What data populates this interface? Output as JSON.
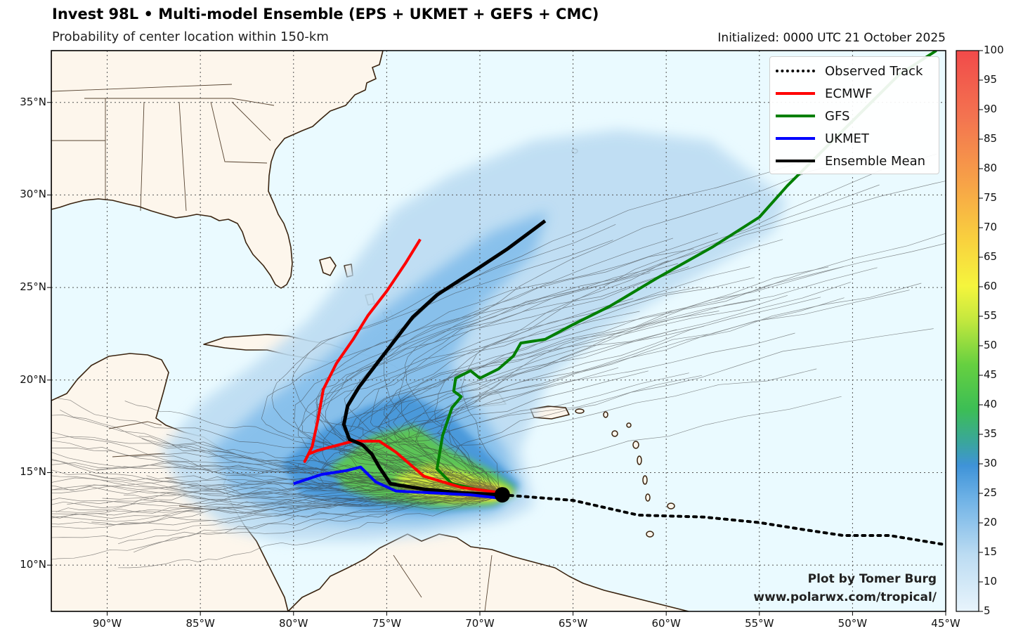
{
  "header": {
    "title": "Invest 98L • Multi-model Ensemble (EPS + UKMET + GEFS + CMC)",
    "subtitle": "Probability of center location within 150-km",
    "initialized": "Initialized: 0000 UTC 21 October 2025"
  },
  "map": {
    "extent": {
      "lon_min": -93.0,
      "lon_max": -45.0,
      "lat_min": 7.5,
      "lat_max": 37.8
    },
    "colors": {
      "ocean": "#eafaff",
      "land": "#fdf6ec",
      "coast": "#3a2410",
      "grid": "#555555"
    },
    "lon_ticks": [
      {
        "lon": -90,
        "label": "90°W"
      },
      {
        "lon": -85,
        "label": "85°W"
      },
      {
        "lon": -80,
        "label": "80°W"
      },
      {
        "lon": -75,
        "label": "75°W"
      },
      {
        "lon": -70,
        "label": "70°W"
      },
      {
        "lon": -65,
        "label": "65°W"
      },
      {
        "lon": -60,
        "label": "60°W"
      },
      {
        "lon": -55,
        "label": "55°W"
      },
      {
        "lon": -50,
        "label": "50°W"
      },
      {
        "lon": -45,
        "label": "45°W"
      }
    ],
    "lat_ticks": [
      {
        "lat": 10,
        "label": "10°N"
      },
      {
        "lat": 15,
        "label": "15°N"
      },
      {
        "lat": 20,
        "label": "20°N"
      },
      {
        "lat": 25,
        "label": "25°N"
      },
      {
        "lat": 30,
        "label": "30°N"
      },
      {
        "lat": 35,
        "label": "35°N"
      }
    ]
  },
  "legend": [
    {
      "key": "observed",
      "label": "Observed Track",
      "color": "#000000",
      "style": "dotted"
    },
    {
      "key": "ecmwf",
      "label": "ECMWF",
      "color": "#ff0000",
      "style": "solid"
    },
    {
      "key": "gfs",
      "label": "GFS",
      "color": "#007f00",
      "style": "solid"
    },
    {
      "key": "ukmet",
      "label": "UKMET",
      "color": "#0000ff",
      "style": "solid"
    },
    {
      "key": "mean",
      "label": "Ensemble Mean",
      "color": "#000000",
      "style": "solid"
    }
  ],
  "tracks": {
    "observed": [
      [
        -68.8,
        13.8
      ],
      [
        -65,
        13.5
      ],
      [
        -61.5,
        12.7
      ],
      [
        -58,
        12.6
      ],
      [
        -55,
        12.3
      ],
      [
        -52.5,
        11.9
      ],
      [
        -50.5,
        11.6
      ],
      [
        -48,
        11.6
      ],
      [
        -45,
        11.1
      ]
    ],
    "ecmwf": [
      [
        -68.8,
        13.9
      ],
      [
        -71,
        14.2
      ],
      [
        -73,
        14.8
      ],
      [
        -74.5,
        16.1
      ],
      [
        -75.4,
        16.7
      ],
      [
        -76.8,
        16.7
      ],
      [
        -78.7,
        16.2
      ],
      [
        -79.2,
        16.0
      ],
      [
        -79.4,
        15.6
      ],
      [
        -79.0,
        16.4
      ],
      [
        -78.7,
        17.8
      ],
      [
        -78.4,
        19.5
      ],
      [
        -77.7,
        20.9
      ],
      [
        -76.8,
        22.2
      ],
      [
        -76.0,
        23.5
      ],
      [
        -75.0,
        24.8
      ],
      [
        -74.0,
        26.3
      ],
      [
        -73.2,
        27.6
      ]
    ],
    "gfs": [
      [
        -68.8,
        13.9
      ],
      [
        -70.2,
        14.1
      ],
      [
        -71.5,
        14.4
      ],
      [
        -72.3,
        15.2
      ],
      [
        -72.0,
        17.0
      ],
      [
        -71.5,
        18.5
      ],
      [
        -71.0,
        19.1
      ],
      [
        -71.4,
        19.4
      ],
      [
        -71.3,
        20.1
      ],
      [
        -70.5,
        20.5
      ],
      [
        -70.0,
        20.1
      ],
      [
        -69.0,
        20.6
      ],
      [
        -68.2,
        21.3
      ],
      [
        -67.8,
        22.0
      ],
      [
        -66.5,
        22.2
      ],
      [
        -65.0,
        23.0
      ],
      [
        -63.0,
        24.0
      ],
      [
        -60.5,
        25.5
      ],
      [
        -57.5,
        27.2
      ],
      [
        -55.0,
        28.8
      ],
      [
        -53.5,
        30.5
      ],
      [
        -51.5,
        32.5
      ],
      [
        -49.5,
        34.5
      ],
      [
        -47.5,
        36.5
      ],
      [
        -45.5,
        37.8
      ]
    ],
    "ukmet": [
      [
        -68.8,
        13.6
      ],
      [
        -70.5,
        13.8
      ],
      [
        -72.5,
        13.9
      ],
      [
        -74.5,
        14.0
      ],
      [
        -75.6,
        14.5
      ],
      [
        -76.4,
        15.3
      ],
      [
        -77.2,
        15.1
      ],
      [
        -78.5,
        14.9
      ],
      [
        -80.0,
        14.4
      ]
    ],
    "mean": [
      [
        -68.8,
        13.8
      ],
      [
        -71,
        13.9
      ],
      [
        -73,
        14.1
      ],
      [
        -74.8,
        14.4
      ],
      [
        -75.4,
        15.3
      ],
      [
        -75.8,
        16.0
      ],
      [
        -76.3,
        16.5
      ],
      [
        -77.0,
        16.8
      ],
      [
        -77.3,
        17.6
      ],
      [
        -77.1,
        18.6
      ],
      [
        -76.5,
        19.6
      ],
      [
        -75.6,
        20.8
      ],
      [
        -74.6,
        22.1
      ],
      [
        -73.6,
        23.4
      ],
      [
        -72.3,
        24.6
      ],
      [
        -70.3,
        25.9
      ],
      [
        -68.5,
        27.1
      ],
      [
        -66.5,
        28.6
      ]
    ],
    "center": [
      -68.8,
      13.8
    ]
  },
  "colorbar": {
    "ticks": [
      5,
      10,
      15,
      20,
      25,
      30,
      35,
      40,
      45,
      50,
      55,
      60,
      65,
      70,
      75,
      80,
      85,
      90,
      95,
      100
    ]
  },
  "credit": {
    "line1": "Plot by Tomer Burg",
    "line2": "www.polarwx.com/tropical/"
  }
}
